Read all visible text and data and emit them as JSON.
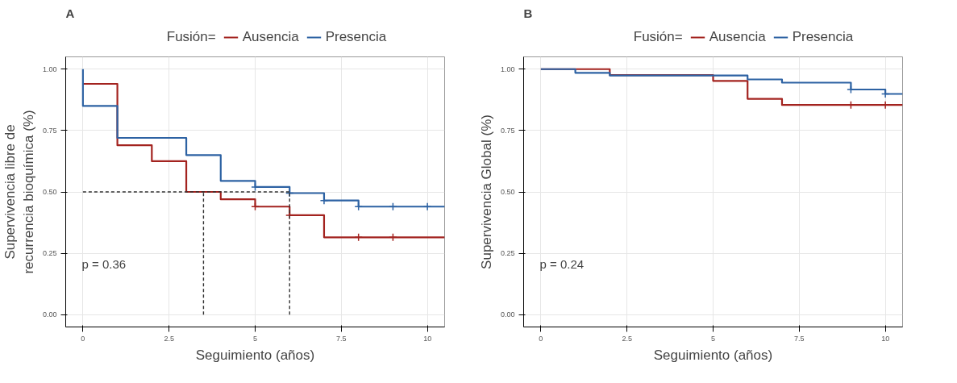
{
  "chart_data": [
    {
      "type": "step",
      "title": "A",
      "xlabel": "Seguimiento (años)",
      "ylabel": "Supervivencia libre de\nrecurrencia bioquímica (%)",
      "legend_title": "Fusión=",
      "legend": "top",
      "grid": true,
      "xlim": [
        -0.5,
        10.5
      ],
      "ylim": [
        -0.05,
        1.05
      ],
      "xticks": [
        0,
        2.5,
        5,
        7.5,
        10
      ],
      "yticks": [
        {
          "value": 0,
          "label": "0.00"
        },
        {
          "value": 0.25,
          "label": "0.25"
        },
        {
          "value": 0.5,
          "label": "0.50"
        },
        {
          "value": 0.75,
          "label": "0.75"
        },
        {
          "value": 1,
          "label": "1.00"
        }
      ],
      "series": [
        {
          "name": "Ausencia",
          "color": "#a3231f",
          "x": [
            0,
            1,
            2,
            3,
            4,
            5,
            6,
            7,
            10.5
          ],
          "values": [
            0.94,
            0.69,
            0.625,
            0.5,
            0.47,
            0.44,
            0.405,
            0.315,
            0.315
          ]
        },
        {
          "name": "Presencia",
          "color": "#2d62a3",
          "x": [
            0,
            0,
            1,
            3,
            4,
            5,
            6,
            7,
            8,
            10.5
          ],
          "values": [
            1,
            0.85,
            0.72,
            0.65,
            0.545,
            0.52,
            0.495,
            0.465,
            0.44,
            0.44
          ]
        },
        {
          "type": "scatter",
          "marker": "cross",
          "color": "#a3231f",
          "x": [
            5,
            6,
            8,
            9
          ],
          "values": [
            0.44,
            0.405,
            0.315,
            0.315
          ]
        },
        {
          "type": "scatter",
          "marker": "cross",
          "color": "#2d62a3",
          "x": [
            5,
            6,
            7,
            8,
            9,
            10
          ],
          "values": [
            0.52,
            0.495,
            0.465,
            0.44,
            0.44,
            0.44
          ]
        },
        {
          "type": "line",
          "line_style": "dashed",
          "color": "#333333",
          "x": [
            0,
            6
          ],
          "values": [
            0.5,
            0.5
          ]
        },
        {
          "type": "line",
          "line_style": "dashed",
          "color": "#333333",
          "x": [
            3.5,
            3.5
          ],
          "values": [
            0,
            0.5
          ]
        },
        {
          "type": "line",
          "line_style": "dashed",
          "color": "#333333",
          "x": [
            6,
            6
          ],
          "values": [
            0,
            0.5
          ]
        }
      ],
      "annotations": [
        "p = 0.36"
      ]
    },
    {
      "type": "step",
      "title": "B",
      "xlabel": "Seguimiento (años)",
      "ylabel": "Supervivencia Global (%)",
      "legend_title": "Fusión=",
      "legend": "top",
      "grid": true,
      "xlim": [
        -0.5,
        10.5
      ],
      "ylim": [
        -0.05,
        1.05
      ],
      "xticks": [
        0,
        2.5,
        5,
        7.5,
        10
      ],
      "yticks": [
        {
          "value": 0,
          "label": "0.00"
        },
        {
          "value": 0.25,
          "label": "0.25"
        },
        {
          "value": 0.5,
          "label": "0.50"
        },
        {
          "value": 0.75,
          "label": "0.75"
        },
        {
          "value": 1,
          "label": "1.00"
        }
      ],
      "series": [
        {
          "name": "Ausencia",
          "color": "#a3231f",
          "x": [
            0,
            2,
            5,
            6,
            7,
            10.5
          ],
          "values": [
            1,
            0.976,
            0.952,
            0.879,
            0.854,
            0.854
          ]
        },
        {
          "name": "Presencia",
          "color": "#2d62a3",
          "x": [
            0,
            1,
            2,
            6,
            7,
            9,
            10,
            10.5
          ],
          "values": [
            1,
            0.985,
            0.974,
            0.958,
            0.945,
            0.917,
            0.899,
            0.899
          ]
        },
        {
          "type": "scatter",
          "marker": "cross",
          "color": "#a3231f",
          "x": [
            9,
            10
          ],
          "values": [
            0.854,
            0.854
          ]
        },
        {
          "type": "scatter",
          "marker": "cross",
          "color": "#2d62a3",
          "x": [
            9,
            10
          ],
          "values": [
            0.917,
            0.899
          ]
        }
      ],
      "annotations": [
        "p = 0.24"
      ]
    }
  ]
}
